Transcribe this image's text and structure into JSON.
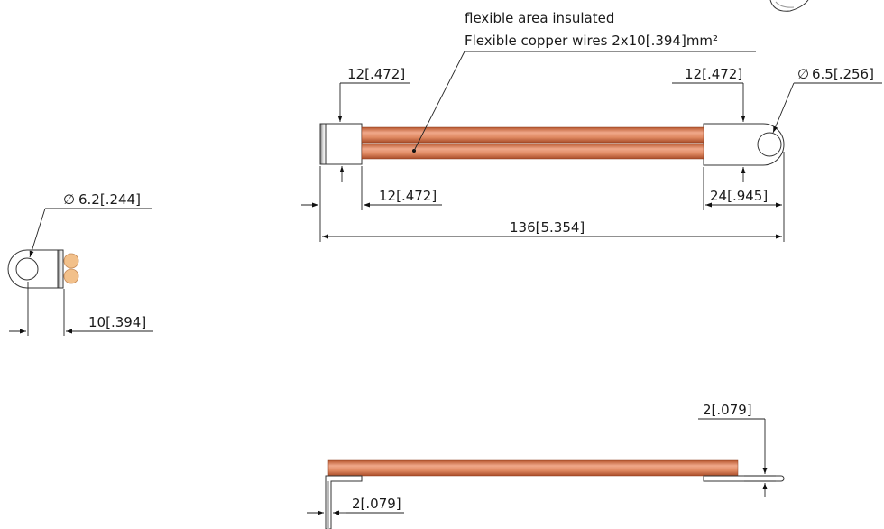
{
  "note": {
    "line1": "flexible area insulated",
    "line2": "Flexible copper wires 2x10[.394]mm²"
  },
  "dimensions": {
    "top_left_lug_width": "12[.472]",
    "top_right_lug_width": "12[.472]",
    "hole_diameter_right": "6.5[.256]",
    "left_lug_offset": "12[.472]",
    "right_lug_offset": "24[.945]",
    "overall_length": "136[5.354]",
    "hole_diameter_left": "6.2[.244]",
    "end_view_width": "10[.394]",
    "side_right_thickness": "2[.079]",
    "side_left_thickness": "2[.079]"
  },
  "symbols": {
    "diameter": "∅"
  },
  "colors": {
    "copper_light": "#f0a88a",
    "copper_mid": "#d97b55",
    "copper_dark": "#b8572f",
    "wire_end": "#f2c08a",
    "line": "#222222"
  }
}
